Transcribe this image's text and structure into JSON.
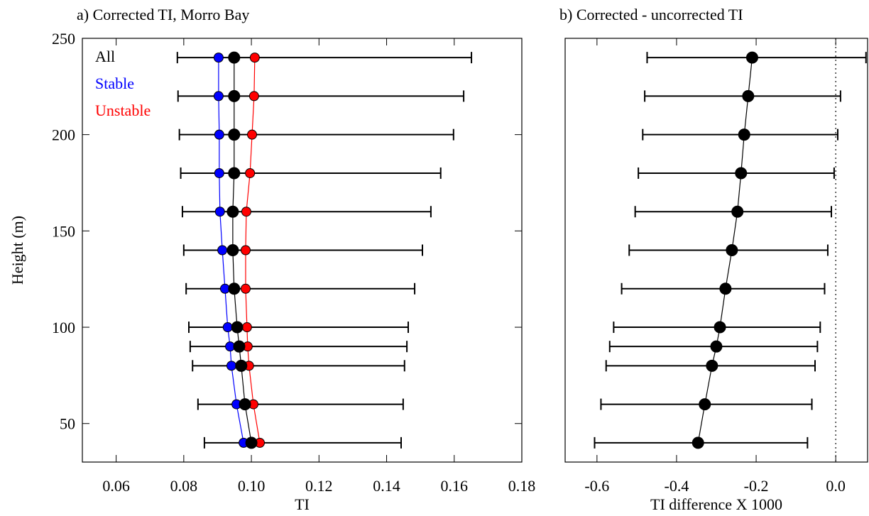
{
  "chart_data": [
    {
      "type": "profile",
      "title": "a) Corrected TI, Morro Bay",
      "x_label": "TI",
      "y_label": "Height (m)",
      "y": [
        240,
        220,
        200,
        180,
        160,
        140,
        120,
        100,
        90,
        80,
        60,
        40
      ],
      "series": [
        {
          "name": "All",
          "color": "#000000",
          "values": [
            0.0949,
            0.0949,
            0.0949,
            0.0949,
            0.0945,
            0.0945,
            0.0949,
            0.0958,
            0.0964,
            0.097,
            0.0981,
            0.1
          ],
          "lower": [
            0.0781,
            0.0783,
            0.0787,
            0.0791,
            0.0796,
            0.08,
            0.0807,
            0.0815,
            0.0819,
            0.0826,
            0.0842,
            0.0861
          ],
          "upper": [
            0.1651,
            0.1628,
            0.1598,
            0.156,
            0.1531,
            0.1506,
            0.1483,
            0.1464,
            0.146,
            0.1453,
            0.1449,
            0.1443
          ]
        },
        {
          "name": "Stable",
          "color": "#0000ff",
          "values": [
            0.0903,
            0.0903,
            0.0905,
            0.0905,
            0.0907,
            0.0914,
            0.0922,
            0.093,
            0.0937,
            0.0941,
            0.0956,
            0.0977
          ]
        },
        {
          "name": "Unstable",
          "color": "#ff0000",
          "values": [
            0.101,
            0.1008,
            0.1002,
            0.0996,
            0.0985,
            0.0983,
            0.0983,
            0.0987,
            0.0989,
            0.0993,
            0.1006,
            0.1025
          ]
        }
      ],
      "xlim": [
        0.05,
        0.18
      ],
      "xticks": [
        0.06,
        0.08,
        {
          "value": 0.1,
          "label": "0.10"
        },
        0.12,
        0.14,
        0.16,
        0.18
      ],
      "ylim": [
        30,
        250
      ],
      "yticks": [
        50,
        100,
        150,
        200,
        250
      ]
    },
    {
      "type": "profile",
      "title": "b) Corrected - uncorrected TI",
      "x_label": "TI difference X 1000",
      "y": [
        240,
        220,
        200,
        180,
        160,
        140,
        120,
        100,
        90,
        80,
        60,
        40
      ],
      "series": [
        {
          "color": "#000000",
          "values": [
            -0.21,
            -0.22,
            -0.23,
            -0.238,
            -0.247,
            -0.261,
            -0.277,
            -0.291,
            -0.3,
            -0.311,
            -0.329,
            -0.346
          ],
          "lower": [
            -0.474,
            -0.48,
            -0.485,
            -0.496,
            -0.504,
            -0.519,
            -0.538,
            -0.558,
            -0.568,
            -0.577,
            -0.59,
            -0.606
          ],
          "upper": [
            0.076,
            0.012,
            0.005,
            -0.004,
            -0.011,
            -0.02,
            -0.028,
            -0.039,
            -0.046,
            -0.052,
            -0.06,
            -0.071
          ]
        }
      ],
      "xlim": [
        -0.68,
        0.08
      ],
      "xticks": [
        -0.6,
        -0.4,
        -0.2,
        {
          "value": 0,
          "label": "0.0"
        }
      ],
      "ylim": [
        30,
        250
      ],
      "vline": 0
    }
  ]
}
